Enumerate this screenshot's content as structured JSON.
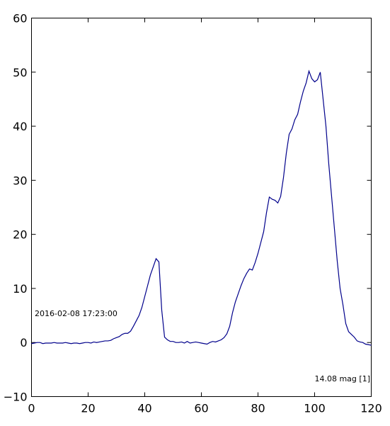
{
  "chart_data": {
    "type": "line",
    "title": "",
    "xlabel": "",
    "ylabel": "",
    "xlim": [
      0,
      120
    ],
    "ylim": [
      -10,
      60
    ],
    "x_ticks": [
      "0",
      "20",
      "40",
      "60",
      "80",
      "100",
      "120"
    ],
    "y_ticks": [
      "−10",
      "0",
      "10",
      "20",
      "30",
      "40",
      "50",
      "60"
    ],
    "grid": false,
    "line_color": "#00008b",
    "annotations": {
      "timestamp": "2016-02-08 17:23:00",
      "magnitude": "14.08 mag [1]"
    },
    "series": [
      {
        "x": [
          0,
          1,
          2,
          3,
          4,
          5,
          6,
          7,
          8,
          9,
          10,
          11,
          12,
          13,
          14,
          15,
          16,
          17,
          18,
          19,
          20,
          21,
          22,
          23,
          24,
          25,
          26,
          27,
          28,
          29,
          30,
          31,
          32,
          33,
          34,
          35,
          36,
          37,
          38,
          39,
          40,
          41,
          42,
          43,
          44,
          45,
          46,
          47,
          48,
          49,
          50,
          51,
          52,
          53,
          54,
          55,
          56,
          57,
          58,
          59,
          60,
          61,
          62,
          63,
          64,
          65,
          66,
          67,
          68,
          69,
          70,
          71,
          72,
          73,
          74,
          75,
          76,
          77,
          78,
          79,
          80,
          81,
          82,
          83,
          84,
          85,
          86,
          87,
          88,
          89,
          90,
          91,
          92,
          93,
          94,
          95,
          96,
          97,
          98,
          99,
          100,
          101,
          102,
          103,
          104,
          105,
          106,
          107,
          108,
          109,
          110,
          111,
          112,
          113,
          114,
          115,
          116,
          117,
          118,
          119,
          120
        ],
        "y": [
          -0.2,
          -0.1,
          0.0,
          0.0,
          -0.2,
          -0.1,
          -0.1,
          -0.1,
          0.0,
          -0.1,
          -0.1,
          -0.1,
          0.0,
          -0.1,
          -0.2,
          -0.1,
          -0.1,
          -0.2,
          -0.1,
          0.0,
          0.0,
          -0.1,
          0.1,
          0.0,
          0.1,
          0.2,
          0.3,
          0.3,
          0.4,
          0.7,
          0.9,
          1.1,
          1.5,
          1.7,
          1.7,
          2.1,
          3.0,
          4.0,
          5.0,
          6.5,
          8.5,
          10.5,
          12.5,
          14.0,
          15.5,
          14.9,
          6.0,
          1.0,
          0.5,
          0.2,
          0.2,
          0.0,
          0.0,
          0.1,
          -0.1,
          0.2,
          -0.1,
          0.0,
          0.1,
          0.0,
          -0.1,
          -0.2,
          -0.3,
          0.0,
          0.2,
          0.1,
          0.3,
          0.5,
          0.9,
          1.6,
          3.0,
          5.5,
          7.5,
          9.0,
          10.5,
          11.8,
          12.8,
          13.6,
          13.4,
          14.8,
          16.5,
          18.5,
          20.5,
          24.0,
          26.9,
          26.5,
          26.3,
          25.8,
          27.0,
          30.5,
          35.0,
          38.5,
          39.5,
          41.2,
          42.2,
          44.5,
          46.5,
          48.0,
          50.2,
          48.8,
          48.2,
          48.6,
          50.0,
          45.0,
          40.0,
          33.0,
          27.0,
          21.0,
          15.0,
          10.0,
          7.0,
          3.5,
          2.0,
          1.5,
          1.0,
          0.3,
          0.1,
          0.0,
          -0.3,
          -0.4,
          -0.5
        ]
      }
    ]
  }
}
